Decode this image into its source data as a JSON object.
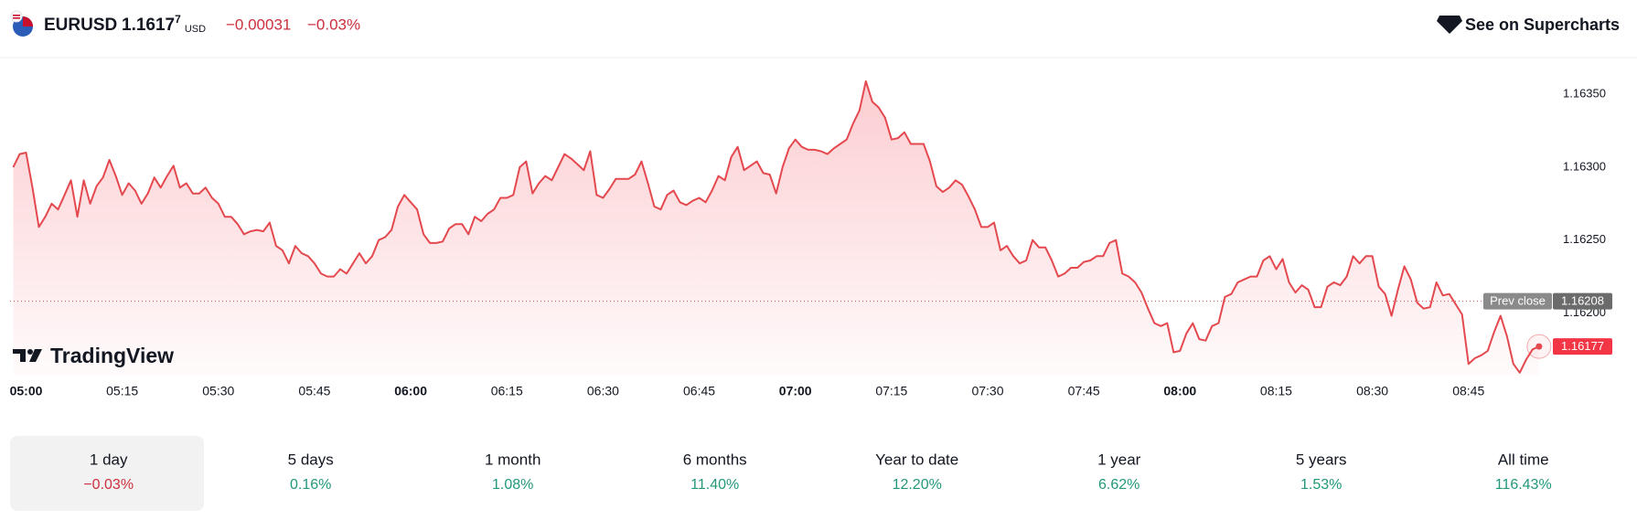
{
  "header": {
    "symbol": "EURUSD",
    "price": "1.1617",
    "price_sup": "7",
    "currency": "USD",
    "change": "−0.00031",
    "change_pct": "−0.03%",
    "link": "See on Supercharts"
  },
  "logo": "TradingView",
  "chart_data": {
    "type": "line",
    "color": "#e4494f",
    "grid": false,
    "x": [
      "04:58",
      "04:59",
      "05:00",
      "05:01",
      "05:02",
      "05:03",
      "05:04",
      "05:05",
      "05:06",
      "05:07",
      "05:08",
      "05:09",
      "05:10",
      "05:11",
      "05:12",
      "05:13",
      "05:14",
      "05:15",
      "05:16",
      "05:17",
      "05:18",
      "05:19",
      "05:20",
      "05:21",
      "05:22",
      "05:23",
      "05:24",
      "05:25",
      "05:26",
      "05:27",
      "05:28",
      "05:29",
      "05:30",
      "05:31",
      "05:32",
      "05:33",
      "05:34",
      "05:35",
      "05:36",
      "05:37",
      "05:38",
      "05:39",
      "05:40",
      "05:41",
      "05:42",
      "05:43",
      "05:44",
      "05:45",
      "05:46",
      "05:47",
      "05:48",
      "05:49",
      "05:50",
      "05:51",
      "05:52",
      "05:53",
      "05:54",
      "05:55",
      "05:56",
      "05:57",
      "05:58",
      "05:59",
      "06:00",
      "06:01",
      "06:02",
      "06:03",
      "06:04",
      "06:05",
      "06:06",
      "06:07",
      "06:08",
      "06:09",
      "06:10",
      "06:11",
      "06:12",
      "06:13",
      "06:14",
      "06:15",
      "06:16",
      "06:17",
      "06:18",
      "06:19",
      "06:20",
      "06:21",
      "06:22",
      "06:23",
      "06:24",
      "06:25",
      "06:26",
      "06:27",
      "06:28",
      "06:29",
      "06:30",
      "06:31",
      "06:32",
      "06:33",
      "06:34",
      "06:35",
      "06:36",
      "06:37",
      "06:38",
      "06:39",
      "06:40",
      "06:41",
      "06:42",
      "06:43",
      "06:44",
      "06:45",
      "06:46",
      "06:47",
      "06:48",
      "06:49",
      "06:50",
      "06:51",
      "06:52",
      "06:53",
      "06:54",
      "06:55",
      "06:56",
      "06:57",
      "06:58",
      "06:59",
      "07:00",
      "07:01",
      "07:02",
      "07:03",
      "07:04",
      "07:05",
      "07:06",
      "07:07",
      "07:08",
      "07:09",
      "07:10",
      "07:11",
      "07:12",
      "07:13",
      "07:14",
      "07:15",
      "07:16",
      "07:17",
      "07:18",
      "07:19",
      "07:20",
      "07:21",
      "07:22",
      "07:23",
      "07:24",
      "07:25",
      "07:26",
      "07:27",
      "07:28",
      "07:29",
      "07:30",
      "07:31",
      "07:32",
      "07:33",
      "07:34",
      "07:35",
      "07:36",
      "07:37",
      "07:38",
      "07:39",
      "07:40",
      "07:41",
      "07:42",
      "07:43",
      "07:44",
      "07:45",
      "07:46",
      "07:47",
      "07:48",
      "07:49",
      "07:50",
      "07:51",
      "07:52",
      "07:53",
      "07:54",
      "07:55",
      "07:56",
      "07:57",
      "07:58",
      "07:59",
      "08:00",
      "08:01",
      "08:02",
      "08:03",
      "08:04",
      "08:05",
      "08:06",
      "08:07",
      "08:08",
      "08:09",
      "08:10",
      "08:11",
      "08:12",
      "08:13",
      "08:14",
      "08:15",
      "08:16",
      "08:17",
      "08:18",
      "08:19",
      "08:20",
      "08:21",
      "08:22",
      "08:23",
      "08:24",
      "08:25",
      "08:26",
      "08:27",
      "08:28",
      "08:29",
      "08:30",
      "08:31",
      "08:32",
      "08:33",
      "08:34",
      "08:35",
      "08:36",
      "08:37",
      "08:38",
      "08:39",
      "08:40",
      "08:41",
      "08:42",
      "08:43",
      "08:44",
      "08:45",
      "08:46",
      "08:47",
      "08:48",
      "08:49",
      "08:50",
      "08:51",
      "08:52",
      "08:53",
      "08:54",
      "08:55",
      "08:56"
    ],
    "values": [
      1.163,
      1.16309,
      1.1631,
      1.16286,
      1.16259,
      1.16266,
      1.16275,
      1.16271,
      1.16281,
      1.16291,
      1.16266,
      1.16291,
      1.16275,
      1.16287,
      1.16293,
      1.16305,
      1.16294,
      1.16281,
      1.16289,
      1.16284,
      1.16275,
      1.16282,
      1.16293,
      1.16286,
      1.16294,
      1.16301,
      1.16286,
      1.16289,
      1.16282,
      1.16282,
      1.16286,
      1.16279,
      1.16275,
      1.16266,
      1.16266,
      1.16261,
      1.16254,
      1.16256,
      1.16257,
      1.16256,
      1.16262,
      1.16246,
      1.16243,
      1.16234,
      1.16246,
      1.16241,
      1.16239,
      1.16234,
      1.16227,
      1.16225,
      1.16225,
      1.1623,
      1.16227,
      1.16234,
      1.16241,
      1.16234,
      1.16239,
      1.1625,
      1.16252,
      1.16257,
      1.16273,
      1.16281,
      1.16276,
      1.16271,
      1.16254,
      1.16248,
      1.16248,
      1.16249,
      1.16258,
      1.16261,
      1.16261,
      1.16254,
      1.16266,
      1.16263,
      1.16268,
      1.16271,
      1.16279,
      1.16279,
      1.16281,
      1.163,
      1.16304,
      1.16282,
      1.16289,
      1.16294,
      1.16291,
      1.163,
      1.16309,
      1.16306,
      1.16302,
      1.16298,
      1.16311,
      1.16281,
      1.16279,
      1.16285,
      1.16292,
      1.16292,
      1.16292,
      1.16295,
      1.16304,
      1.16289,
      1.16273,
      1.16271,
      1.16281,
      1.16284,
      1.16276,
      1.16274,
      1.16277,
      1.16279,
      1.16276,
      1.16284,
      1.16294,
      1.16291,
      1.16307,
      1.16314,
      1.16298,
      1.16301,
      1.16304,
      1.16296,
      1.16295,
      1.16282,
      1.163,
      1.16313,
      1.16319,
      1.16314,
      1.16312,
      1.16312,
      1.16311,
      1.16309,
      1.16313,
      1.16316,
      1.16319,
      1.1633,
      1.16339,
      1.16359,
      1.16345,
      1.16341,
      1.16334,
      1.16319,
      1.1632,
      1.16324,
      1.16316,
      1.16316,
      1.16316,
      1.16304,
      1.16287,
      1.16283,
      1.16286,
      1.16291,
      1.16288,
      1.1628,
      1.16271,
      1.16259,
      1.16259,
      1.16262,
      1.16243,
      1.16246,
      1.16239,
      1.16234,
      1.16236,
      1.1625,
      1.16245,
      1.16245,
      1.16236,
      1.16225,
      1.16227,
      1.16231,
      1.16231,
      1.16235,
      1.16236,
      1.16239,
      1.16239,
      1.16248,
      1.1625,
      1.16227,
      1.16225,
      1.16221,
      1.16214,
      1.16203,
      1.16193,
      1.16191,
      1.16193,
      1.16173,
      1.16174,
      1.16186,
      1.16193,
      1.16182,
      1.16181,
      1.16191,
      1.16193,
      1.16211,
      1.16213,
      1.16221,
      1.16223,
      1.16225,
      1.16225,
      1.16236,
      1.16239,
      1.1623,
      1.16237,
      1.16221,
      1.16214,
      1.16219,
      1.16216,
      1.16204,
      1.16204,
      1.16218,
      1.16221,
      1.16219,
      1.16225,
      1.16239,
      1.16234,
      1.16239,
      1.16239,
      1.16218,
      1.16213,
      1.16198,
      1.16216,
      1.16232,
      1.16223,
      1.16207,
      1.16203,
      1.16204,
      1.16221,
      1.16212,
      1.16213,
      1.16206,
      1.16199,
      1.16165,
      1.16169,
      1.16171,
      1.16174,
      1.16187,
      1.16198,
      1.16184,
      1.16165,
      1.16159,
      1.16168,
      1.16175,
      1.16177
    ],
    "ylim": [
      1.16157,
      1.16374
    ],
    "yticks": [
      {
        "value": 1.162,
        "label": "1.16200"
      },
      {
        "value": 1.1625,
        "label": "1.16250"
      },
      {
        "value": 1.163,
        "label": "1.16300"
      },
      {
        "value": 1.1635,
        "label": "1.16350"
      }
    ],
    "xticks": [
      "05:00",
      "05:15",
      "05:30",
      "05:45",
      "06:00",
      "06:15",
      "06:30",
      "06:45",
      "07:00",
      "07:15",
      "07:30",
      "07:45",
      "08:00",
      "08:15",
      "08:30",
      "08:45"
    ],
    "prev_close": 1.16208,
    "prev_close_title": "Prev close"
  },
  "periods": [
    {
      "label": "1 day",
      "change": "−0.03%",
      "color": "#cc2f3c"
    },
    {
      "label": "5 days",
      "change": "0.16%",
      "color": "#22977a"
    },
    {
      "label": "1 month",
      "change": "1.08%",
      "color": "#22977a"
    },
    {
      "label": "6 months",
      "change": "11.40%",
      "color": "#22977a"
    },
    {
      "label": "Year to date",
      "change": "12.20%",
      "color": "#22977a"
    },
    {
      "label": "1 year",
      "change": "6.62%",
      "color": "#22977a"
    },
    {
      "label": "5 years",
      "change": "1.53%",
      "color": "#22977a"
    },
    {
      "label": "All time",
      "change": "116.43%",
      "color": "#22977a"
    }
  ]
}
